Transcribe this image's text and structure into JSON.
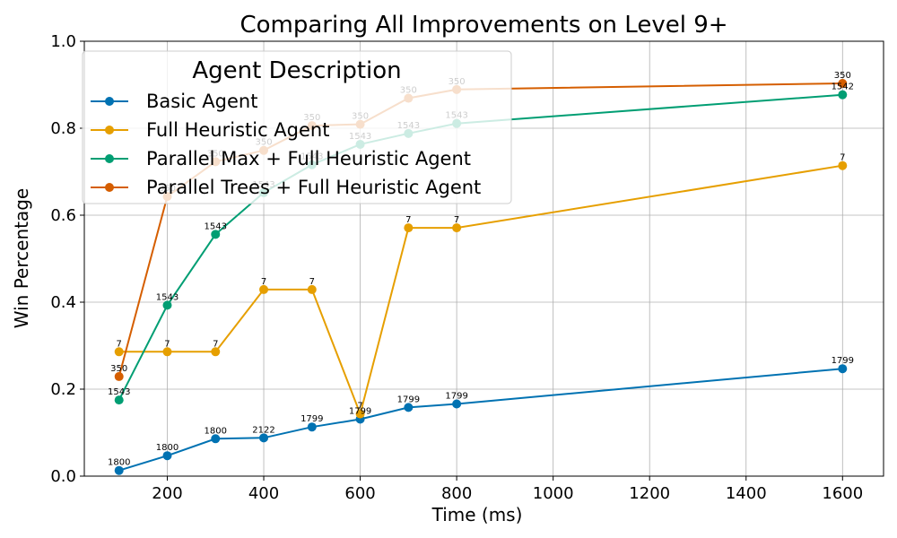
{
  "chart_data": {
    "type": "line",
    "title": "Comparing All Improvements on Level 9+",
    "xlabel": "Time (ms)",
    "ylabel": "Win Percentage",
    "xlim": [
      28,
      1685
    ],
    "ylim": [
      0,
      1.0
    ],
    "xticks": [
      200,
      400,
      600,
      800,
      1000,
      1200,
      1400,
      1600
    ],
    "yticks": [
      0.0,
      0.2,
      0.4,
      0.6,
      0.8,
      1.0
    ],
    "grid": true,
    "legend": {
      "title": "Agent Description",
      "placement": "top-left"
    },
    "series": [
      {
        "name": "Basic Agent",
        "color": "#0072b2",
        "x": [
          100,
          200,
          300,
          400,
          500,
          600,
          700,
          800,
          1600
        ],
        "y": [
          0.013,
          0.047,
          0.086,
          0.088,
          0.113,
          0.131,
          0.158,
          0.166,
          0.247
        ],
        "labels": [
          "1800",
          "1800",
          "1800",
          "2122",
          "1799",
          "1799",
          "1799",
          "1799",
          "1799"
        ]
      },
      {
        "name": "Full Heuristic Agent",
        "color": "#e69f00",
        "x": [
          100,
          200,
          300,
          400,
          500,
          600,
          700,
          800,
          1600
        ],
        "y": [
          0.286,
          0.286,
          0.286,
          0.429,
          0.429,
          0.143,
          0.571,
          0.571,
          0.714
        ],
        "labels": [
          "7",
          "7",
          "7",
          "7",
          "7",
          "7",
          "7",
          "7",
          "7"
        ]
      },
      {
        "name": "Parallel Max + Full Heuristic Agent",
        "color": "#009e73",
        "x": [
          100,
          200,
          300,
          400,
          500,
          600,
          700,
          800,
          1600
        ],
        "y": [
          0.175,
          0.393,
          0.556,
          0.652,
          0.716,
          0.763,
          0.788,
          0.811,
          0.877
        ],
        "labels": [
          "1543",
          "1543",
          "1543",
          "1543",
          "1543",
          "1543",
          "1543",
          "1543",
          "1542"
        ]
      },
      {
        "name": "Parallel Trees + Full Heuristic Agent",
        "color": "#d55e00",
        "x": [
          100,
          200,
          300,
          400,
          500,
          600,
          700,
          800,
          1600
        ],
        "y": [
          0.229,
          0.643,
          0.723,
          0.749,
          0.806,
          0.809,
          0.869,
          0.889,
          0.903
        ],
        "labels": [
          "350",
          "350",
          "350",
          "350",
          "350",
          "350",
          "350",
          "350",
          "350"
        ]
      }
    ]
  }
}
